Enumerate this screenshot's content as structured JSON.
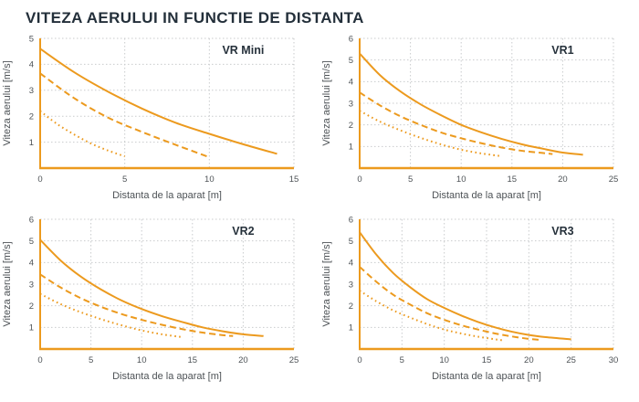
{
  "page_title": "VITEZA AERULUI IN FUNCTIE DE DISTANTA",
  "colors": {
    "accent": "#EC9A1E",
    "grid": "#c9cbcd",
    "title_text": "#232f3a",
    "tick_text": "#4d5256",
    "axis_label_text": "#4d5256",
    "chart_label_text": "#26313b",
    "background": "#ffffff"
  },
  "chart_data": [
    {
      "type": "line",
      "title": "VR Mini",
      "xlabel": "Distanta de la aparat [m]",
      "ylabel": "Viteza aerului [m/s]",
      "xlim": [
        0,
        15
      ],
      "ylim": [
        0,
        5
      ],
      "xticks": [
        0,
        5,
        10,
        15
      ],
      "yticks": [
        1,
        2,
        3,
        4,
        5
      ],
      "grid": true,
      "legend": "none",
      "series": [
        {
          "name": "curve-solid",
          "style": "solid",
          "points": [
            [
              0,
              4.6
            ],
            [
              2,
              3.7
            ],
            [
              4,
              2.95
            ],
            [
              6,
              2.3
            ],
            [
              8,
              1.75
            ],
            [
              10,
              1.32
            ],
            [
              12,
              0.92
            ],
            [
              14,
              0.55
            ]
          ]
        },
        {
          "name": "curve-dashed",
          "style": "dashed",
          "points": [
            [
              0,
              3.65
            ],
            [
              2,
              2.7
            ],
            [
              4,
              1.95
            ],
            [
              6,
              1.4
            ],
            [
              8,
              0.9
            ],
            [
              10,
              0.42
            ]
          ]
        },
        {
          "name": "curve-dotted",
          "style": "dotted",
          "points": [
            [
              0,
              2.2
            ],
            [
              1,
              1.7
            ],
            [
              2,
              1.3
            ],
            [
              3,
              0.95
            ],
            [
              4,
              0.68
            ],
            [
              5,
              0.45
            ]
          ]
        }
      ]
    },
    {
      "type": "line",
      "title": "VR1",
      "xlabel": "Distanta de la aparat [m]",
      "ylabel": "Viteza aerului [m/s]",
      "xlim": [
        0,
        25
      ],
      "ylim": [
        0,
        6
      ],
      "xticks": [
        0,
        5,
        10,
        15,
        20,
        25
      ],
      "yticks": [
        1,
        2,
        3,
        4,
        5,
        6
      ],
      "grid": true,
      "legend": "none",
      "series": [
        {
          "name": "curve-solid",
          "style": "solid",
          "points": [
            [
              0,
              5.3
            ],
            [
              2,
              4.3
            ],
            [
              4,
              3.55
            ],
            [
              6,
              2.95
            ],
            [
              8,
              2.45
            ],
            [
              10,
              2.0
            ],
            [
              12,
              1.65
            ],
            [
              14,
              1.35
            ],
            [
              16,
              1.1
            ],
            [
              18,
              0.9
            ],
            [
              20,
              0.72
            ],
            [
              22,
              0.62
            ]
          ]
        },
        {
          "name": "curve-dashed",
          "style": "dashed",
          "points": [
            [
              0,
              3.5
            ],
            [
              2,
              2.9
            ],
            [
              4,
              2.4
            ],
            [
              6,
              2.0
            ],
            [
              8,
              1.65
            ],
            [
              10,
              1.38
            ],
            [
              12,
              1.15
            ],
            [
              14,
              0.95
            ],
            [
              16,
              0.8
            ],
            [
              18,
              0.7
            ],
            [
              19,
              0.65
            ]
          ]
        },
        {
          "name": "curve-dotted",
          "style": "dotted",
          "points": [
            [
              0,
              2.65
            ],
            [
              2,
              2.15
            ],
            [
              4,
              1.75
            ],
            [
              6,
              1.4
            ],
            [
              8,
              1.1
            ],
            [
              10,
              0.85
            ],
            [
              12,
              0.68
            ],
            [
              14,
              0.55
            ]
          ]
        }
      ]
    },
    {
      "type": "line",
      "title": "VR2",
      "xlabel": "Distanta de la aparat [m]",
      "ylabel": "Viteza aerului [m/s]",
      "xlim": [
        0,
        25
      ],
      "ylim": [
        0,
        6
      ],
      "xticks": [
        0,
        5,
        10,
        15,
        20,
        25
      ],
      "yticks": [
        1,
        2,
        3,
        4,
        5,
        6
      ],
      "grid": true,
      "legend": "none",
      "series": [
        {
          "name": "curve-solid",
          "style": "solid",
          "points": [
            [
              0,
              5.05
            ],
            [
              2,
              4.1
            ],
            [
              4,
              3.35
            ],
            [
              6,
              2.75
            ],
            [
              8,
              2.25
            ],
            [
              10,
              1.85
            ],
            [
              12,
              1.52
            ],
            [
              14,
              1.25
            ],
            [
              16,
              1.0
            ],
            [
              18,
              0.82
            ],
            [
              20,
              0.68
            ],
            [
              22,
              0.6
            ]
          ]
        },
        {
          "name": "curve-dashed",
          "style": "dashed",
          "points": [
            [
              0,
              3.45
            ],
            [
              2,
              2.85
            ],
            [
              4,
              2.35
            ],
            [
              6,
              1.95
            ],
            [
              8,
              1.62
            ],
            [
              10,
              1.35
            ],
            [
              12,
              1.12
            ],
            [
              14,
              0.92
            ],
            [
              16,
              0.76
            ],
            [
              18,
              0.64
            ],
            [
              19,
              0.6
            ]
          ]
        },
        {
          "name": "curve-dotted",
          "style": "dotted",
          "points": [
            [
              0,
              2.55
            ],
            [
              2,
              2.08
            ],
            [
              4,
              1.7
            ],
            [
              6,
              1.38
            ],
            [
              8,
              1.1
            ],
            [
              10,
              0.86
            ],
            [
              12,
              0.68
            ],
            [
              14,
              0.55
            ]
          ]
        }
      ]
    },
    {
      "type": "line",
      "title": "VR3",
      "xlabel": "Distanta de la aparat [m]",
      "ylabel": "Viteza aerului [m/s]",
      "xlim": [
        0,
        30
      ],
      "ylim": [
        0,
        6
      ],
      "xticks": [
        0,
        5,
        10,
        15,
        20,
        25,
        30
      ],
      "yticks": [
        1,
        2,
        3,
        4,
        5,
        6
      ],
      "grid": true,
      "legend": "none",
      "series": [
        {
          "name": "curve-solid",
          "style": "solid",
          "points": [
            [
              0,
              5.4
            ],
            [
              2,
              4.35
            ],
            [
              4,
              3.5
            ],
            [
              6,
              2.85
            ],
            [
              8,
              2.3
            ],
            [
              10,
              1.9
            ],
            [
              12,
              1.55
            ],
            [
              14,
              1.25
            ],
            [
              16,
              1.0
            ],
            [
              18,
              0.8
            ],
            [
              20,
              0.65
            ],
            [
              22,
              0.55
            ],
            [
              25,
              0.45
            ]
          ]
        },
        {
          "name": "curve-dashed",
          "style": "dashed",
          "points": [
            [
              0,
              3.8
            ],
            [
              2,
              3.1
            ],
            [
              4,
              2.5
            ],
            [
              6,
              2.05
            ],
            [
              8,
              1.65
            ],
            [
              10,
              1.35
            ],
            [
              12,
              1.1
            ],
            [
              14,
              0.9
            ],
            [
              16,
              0.72
            ],
            [
              18,
              0.58
            ],
            [
              20,
              0.47
            ],
            [
              21.5,
              0.42
            ]
          ]
        },
        {
          "name": "curve-dotted",
          "style": "dotted",
          "points": [
            [
              0,
              2.7
            ],
            [
              2,
              2.2
            ],
            [
              4,
              1.78
            ],
            [
              6,
              1.45
            ],
            [
              8,
              1.15
            ],
            [
              10,
              0.9
            ],
            [
              12,
              0.72
            ],
            [
              14,
              0.57
            ],
            [
              16,
              0.45
            ],
            [
              17,
              0.4
            ]
          ]
        }
      ]
    }
  ]
}
